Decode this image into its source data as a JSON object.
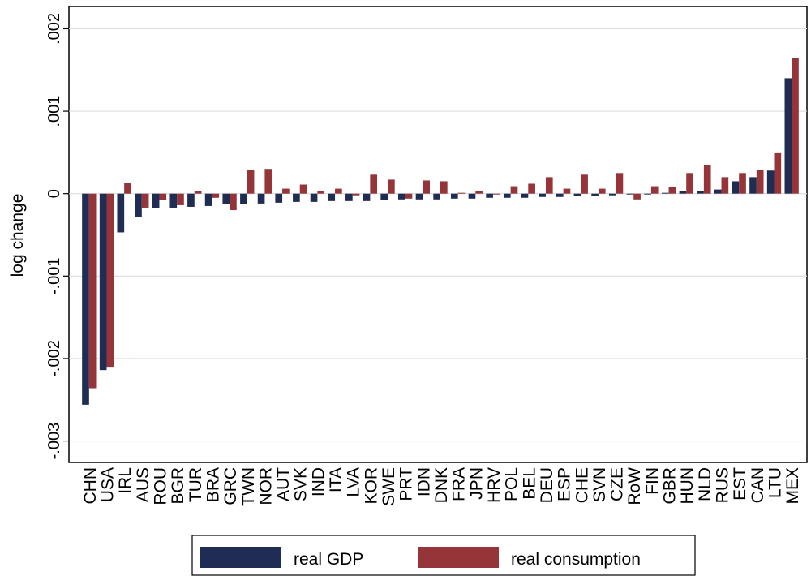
{
  "chart_data": {
    "type": "bar",
    "y_label": "log change",
    "categories": [
      "CHN",
      "USA",
      "IRL",
      "AUS",
      "ROU",
      "BGR",
      "TUR",
      "BRA",
      "GRC",
      "TWN",
      "NOR",
      "AUT",
      "SVK",
      "IND",
      "ITA",
      "LVA",
      "KOR",
      "SWE",
      "PRT",
      "IDN",
      "DNK",
      "FRA",
      "JPN",
      "HRV",
      "POL",
      "BEL",
      "DEU",
      "ESP",
      "CHE",
      "SVN",
      "CZE",
      "RoW",
      "FIN",
      "GBR",
      "HUN",
      "NLD",
      "RUS",
      "EST",
      "CAN",
      "LTU",
      "MEX"
    ],
    "series": [
      {
        "name": "real GDP",
        "color": "#1f2d55",
        "values": [
          -0.00256,
          -0.00214,
          -0.00047,
          -0.00028,
          -0.00018,
          -0.00017,
          -0.00016,
          -0.00015,
          -0.00013,
          -0.00013,
          -0.00012,
          -0.00011,
          -0.0001,
          -0.0001,
          -9e-05,
          -9e-05,
          -9e-05,
          -8e-05,
          -7e-05,
          -7e-05,
          -7e-05,
          -6e-05,
          -6e-05,
          -5e-05,
          -5e-05,
          -5e-05,
          -4e-05,
          -4e-05,
          -3e-05,
          -3e-05,
          -2e-05,
          -1e-05,
          -1e-05,
          1e-05,
          3e-05,
          3e-05,
          5e-05,
          0.00015,
          0.0002,
          0.00028,
          0.0014
        ]
      },
      {
        "name": "real consumption",
        "color": "#953439",
        "values": [
          -0.00236,
          -0.0021,
          0.00013,
          -0.00017,
          -8e-05,
          -0.00014,
          3e-05,
          -5e-05,
          -0.0002,
          0.00029,
          0.0003,
          6e-05,
          0.00011,
          3e-05,
          6e-05,
          -2e-05,
          0.00023,
          0.00017,
          -6e-05,
          0.00016,
          0.00015,
          1e-05,
          3e-05,
          -1e-05,
          9e-05,
          0.00012,
          0.0002,
          6e-05,
          0.00023,
          6e-05,
          0.00025,
          -7e-05,
          9e-05,
          8e-05,
          0.00025,
          0.00035,
          0.0002,
          0.00025,
          0.00029,
          0.0005,
          0.00165
        ]
      }
    ],
    "ylim": [
      -0.00326,
      0.00227
    ],
    "yticks": [
      {
        "value": -0.003,
        "label": "-.003"
      },
      {
        "value": -0.002,
        "label": "-.002"
      },
      {
        "value": -0.001,
        "label": "-.001"
      },
      0,
      {
        "value": 0.001,
        "label": ".001"
      },
      {
        "value": 0.002,
        "label": ".002"
      }
    ],
    "grid": true
  }
}
